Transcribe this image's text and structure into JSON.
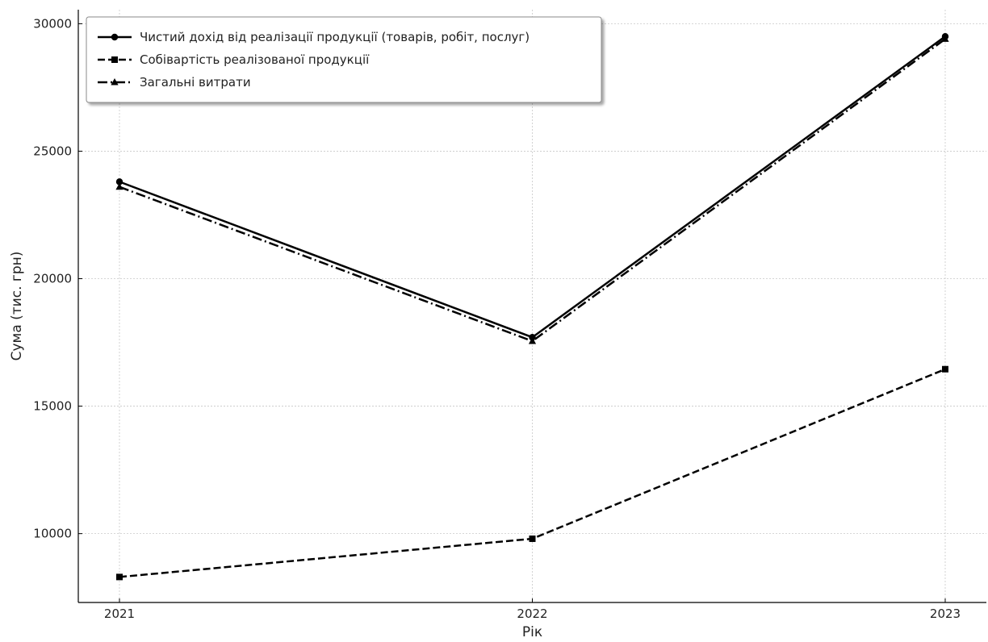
{
  "chart_data": {
    "type": "line",
    "title": "",
    "xlabel": "Рік",
    "ylabel": "Сума (тис. грн)",
    "x": [
      2021,
      2022,
      2023
    ],
    "x_tick_labels": [
      "2021",
      "2022",
      "2023"
    ],
    "ylim": [
      7300,
      30550
    ],
    "y_ticks": [
      10000,
      15000,
      20000,
      25000,
      30000
    ],
    "y_tick_labels": [
      "10000",
      "15000",
      "20000",
      "25000",
      "30000"
    ],
    "grid": true,
    "legend_position": "top-left",
    "series": [
      {
        "name": "Чистий дохід від реалізації продукції (товарів, робіт, послуг)",
        "values": [
          23800,
          17700,
          29500
        ],
        "marker": "circle",
        "line_style": "solid",
        "color": "#000000"
      },
      {
        "name": "Собівартість реалізованої продукції",
        "values": [
          8300,
          9800,
          16450
        ],
        "marker": "square",
        "line_style": "dashed",
        "color": "#000000"
      },
      {
        "name": "Загальні витрати",
        "values": [
          23600,
          17550,
          29400
        ],
        "marker": "triangle",
        "line_style": "dash-dot",
        "color": "#000000"
      }
    ]
  }
}
